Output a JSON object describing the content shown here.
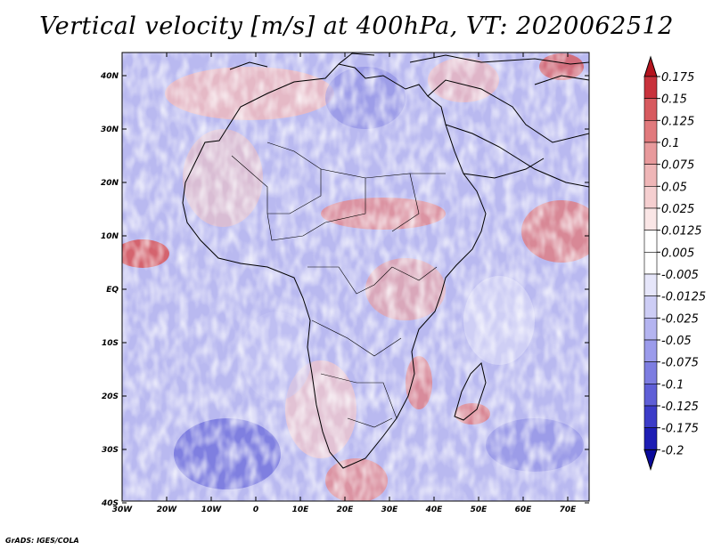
{
  "title": "Vertical velocity [m/s] at 400hPa, VT: 2020062512",
  "credit": "GrADS: IGES/COLA",
  "map": {
    "region": "Africa",
    "lat_labels": [
      "40N",
      "30N",
      "20N",
      "10N",
      "EQ",
      "10S",
      "20S",
      "30S",
      "40S"
    ],
    "lon_labels": [
      "30W",
      "20W",
      "10W",
      "0",
      "10E",
      "20E",
      "30E",
      "40E",
      "50E",
      "60E",
      "70E"
    ]
  },
  "colorbar": {
    "levels": [
      "0.175",
      "0.15",
      "0.125",
      "0.1",
      "0.075",
      "0.05",
      "0.025",
      "0.0125",
      "0.005",
      "-0.005",
      "-0.0125",
      "-0.025",
      "-0.05",
      "-0.075",
      "-0.1",
      "-0.125",
      "-0.175",
      "-0.2"
    ],
    "colors": [
      "#b4141e",
      "#c8323c",
      "#d75a5f",
      "#e17a7d",
      "#e89a9c",
      "#efb6b7",
      "#f5cfd0",
      "#fae6e6",
      "#ffffff",
      "#ffffff",
      "#e6e6fa",
      "#cdcdf5",
      "#b4b4f0",
      "#9b9beb",
      "#7d7de1",
      "#5f5fd7",
      "#3c3cc8",
      "#1e1eb4",
      "#0a0a9b"
    ]
  }
}
